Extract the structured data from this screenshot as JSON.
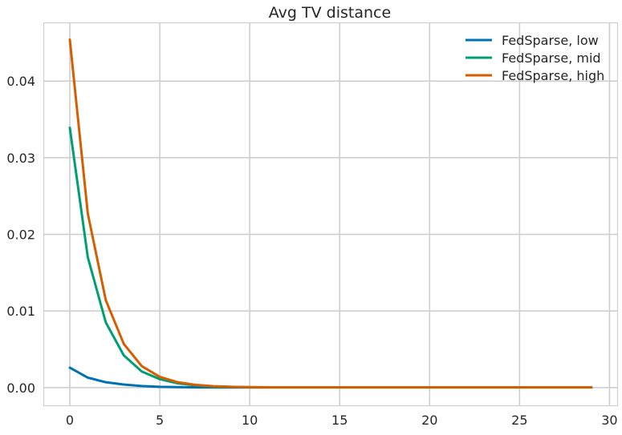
{
  "chart_data": {
    "type": "line",
    "title": "Avg TV distance",
    "xlabel": "",
    "ylabel": "",
    "xlim": [
      -1.45,
      30.45
    ],
    "ylim": [
      -0.00237,
      0.0476
    ],
    "xticks": [
      0,
      5,
      10,
      15,
      20,
      25,
      30
    ],
    "yticks": [
      0.0,
      0.01,
      0.02,
      0.03,
      0.04
    ],
    "ytick_labels": [
      "0.00",
      "0.01",
      "0.02",
      "0.03",
      "0.04"
    ],
    "grid": true,
    "legend_position": "top-right",
    "x": [
      0,
      1,
      2,
      3,
      4,
      5,
      6,
      7,
      8,
      9,
      10,
      11,
      12,
      13,
      14,
      15,
      16,
      17,
      18,
      19,
      20,
      21,
      22,
      23,
      24,
      25,
      26,
      27,
      28,
      29
    ],
    "series": [
      {
        "name": "FedSparse, low",
        "color": "#0072b2",
        "values": [
          0.0026,
          0.0013,
          0.0007,
          0.0004,
          0.0002,
          0.0001,
          6e-05,
          4e-05,
          3e-05,
          2e-05,
          2e-05,
          2e-05,
          2e-05,
          2e-05,
          2e-05,
          2e-05,
          2e-05,
          2e-05,
          2e-05,
          2e-05,
          2e-05,
          2e-05,
          2e-05,
          2e-05,
          2e-05,
          2e-05,
          2e-05,
          2e-05,
          2e-05,
          2e-05
        ]
      },
      {
        "name": "FedSparse, mid",
        "color": "#009e73",
        "values": [
          0.0339,
          0.017,
          0.0085,
          0.0042,
          0.0021,
          0.0011,
          0.00055,
          0.0003,
          0.00015,
          8e-05,
          5e-05,
          3e-05,
          3e-05,
          3e-05,
          3e-05,
          3e-05,
          3e-05,
          3e-05,
          3e-05,
          3e-05,
          3e-05,
          3e-05,
          3e-05,
          3e-05,
          3e-05,
          3e-05,
          3e-05,
          3e-05,
          3e-05,
          3e-05
        ]
      },
      {
        "name": "FedSparse, high",
        "color": "#d55e00",
        "values": [
          0.0454,
          0.0227,
          0.0114,
          0.0057,
          0.0028,
          0.0014,
          0.0007,
          0.00035,
          0.00018,
          0.0001,
          6e-05,
          4e-05,
          4e-05,
          4e-05,
          4e-05,
          4e-05,
          4e-05,
          4e-05,
          4e-05,
          4e-05,
          4e-05,
          4e-05,
          4e-05,
          4e-05,
          4e-05,
          4e-05,
          4e-05,
          4e-05,
          4e-05,
          4e-05
        ]
      }
    ]
  }
}
